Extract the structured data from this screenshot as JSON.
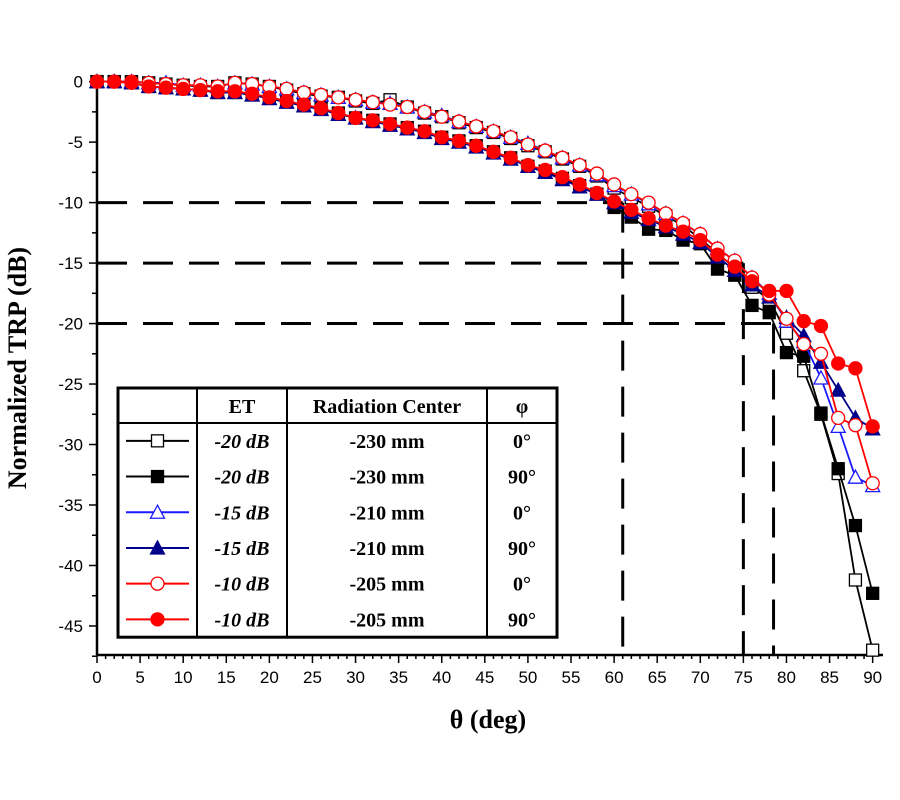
{
  "chart_data": {
    "type": "line",
    "title": "",
    "xlabel": "θ (deg)",
    "ylabel": "Normalized TRP (dB)",
    "xlim": [
      0,
      91.2
    ],
    "ylim": [
      -47.4,
      0.3
    ],
    "xticks": [
      0,
      5,
      10,
      15,
      20,
      25,
      30,
      35,
      40,
      45,
      50,
      55,
      60,
      65,
      70,
      75,
      80,
      85,
      90
    ],
    "yticks": [
      0,
      -5,
      -10,
      -15,
      -20,
      -25,
      -30,
      -35,
      -40,
      -45
    ],
    "x": [
      0,
      2,
      4,
      6,
      8,
      10,
      12,
      14,
      16,
      18,
      20,
      22,
      24,
      26,
      28,
      30,
      32,
      34,
      36,
      38,
      40,
      42,
      44,
      46,
      48,
      50,
      52,
      54,
      56,
      58,
      60,
      62,
      64,
      66,
      68,
      70,
      72,
      74,
      76,
      78,
      80,
      82,
      84,
      86,
      88,
      90
    ],
    "legend_headers": [
      "ET",
      "Radiation Center",
      "φ"
    ],
    "series": [
      {
        "name": "-20 dB, -230 mm, 0°",
        "et": "-20 dB",
        "center": "-230 mm",
        "phi": "0°",
        "color": "#000000",
        "marker": "square",
        "filled": false,
        "values": [
          0,
          0,
          0,
          -0.1,
          -0.2,
          -0.3,
          -0.4,
          -0.4,
          -0.1,
          -0.2,
          -0.4,
          -0.7,
          -1.0,
          -1.2,
          -1.3,
          -1.6,
          -1.8,
          -1.5,
          -2.1,
          -2.6,
          -2.9,
          -3.4,
          -3.8,
          -4.2,
          -4.7,
          -5.3,
          -5.8,
          -6.4,
          -7.0,
          -7.8,
          -8.8,
          -9.6,
          -10.3,
          -11.1,
          -11.9,
          -13.0,
          -14.2,
          -15.4,
          -17.0,
          -18.0,
          -20.8,
          -23.9,
          -27.5,
          -32.4,
          -41.2,
          -47.0
        ]
      },
      {
        "name": "-20 dB, -230 mm, 90°",
        "et": "-20 dB",
        "center": "-230 mm",
        "phi": "90°",
        "color": "#000000",
        "marker": "square",
        "filled": true,
        "values": [
          0,
          0,
          -0.1,
          -0.4,
          -0.5,
          -0.6,
          -0.7,
          -0.9,
          -0.9,
          -1.1,
          -1.3,
          -1.6,
          -2.0,
          -2.2,
          -2.6,
          -3.0,
          -3.2,
          -3.5,
          -3.8,
          -4.1,
          -4.6,
          -4.9,
          -5.3,
          -5.8,
          -6.3,
          -7.0,
          -7.4,
          -8.0,
          -8.6,
          -9.3,
          -10.4,
          -11.2,
          -12.2,
          -12.3,
          -13.1,
          -13.4,
          -15.5,
          -16.0,
          -18.5,
          -19.1,
          -22.4,
          -22.7,
          -27.4,
          -32.0,
          -36.7,
          -42.3
        ]
      },
      {
        "name": "-15 dB, -210 mm, 0°",
        "et": "-15 dB",
        "center": "-210 mm",
        "phi": "0°",
        "color": "#1a1aff",
        "marker": "triangle",
        "filled": false,
        "values": [
          0,
          0,
          0,
          -0.1,
          -0.1,
          -0.3,
          -0.3,
          -0.4,
          -0.1,
          -0.2,
          -0.4,
          -0.6,
          -0.9,
          -1.1,
          -1.3,
          -1.5,
          -1.7,
          -1.8,
          -2.1,
          -2.5,
          -2.8,
          -3.3,
          -3.7,
          -4.1,
          -4.6,
          -5.1,
          -5.7,
          -6.3,
          -6.9,
          -7.7,
          -8.6,
          -9.3,
          -10.1,
          -10.9,
          -11.7,
          -12.6,
          -13.8,
          -14.8,
          -16.2,
          -17.5,
          -19.8,
          -21.5,
          -24.5,
          -28.5,
          -32.7,
          -33.4
        ]
      },
      {
        "name": "-15 dB, -210 mm, 90°",
        "et": "-15 dB",
        "center": "-210 mm",
        "phi": "90°",
        "color": "#00008b",
        "marker": "triangle",
        "filled": true,
        "values": [
          0,
          0,
          -0.1,
          -0.4,
          -0.5,
          -0.6,
          -0.7,
          -0.9,
          -0.9,
          -1.1,
          -1.4,
          -1.7,
          -2.0,
          -2.3,
          -2.7,
          -3.0,
          -3.3,
          -3.6,
          -3.9,
          -4.2,
          -4.7,
          -5.0,
          -5.4,
          -5.9,
          -6.4,
          -7.0,
          -7.5,
          -8.1,
          -8.7,
          -9.3,
          -10.0,
          -10.8,
          -11.4,
          -12.0,
          -12.6,
          -13.3,
          -14.5,
          -15.6,
          -16.8,
          -17.8,
          -19.5,
          -21.0,
          -23.2,
          -25.5,
          -27.8,
          -28.7
        ]
      },
      {
        "name": "-10 dB, -205 mm, 0°",
        "et": "-10 dB",
        "center": "-205 mm",
        "phi": "0°",
        "color": "#ff0000",
        "marker": "circle",
        "filled": false,
        "values": [
          0,
          0,
          0,
          -0.1,
          -0.2,
          -0.3,
          -0.3,
          -0.4,
          -0.1,
          -0.2,
          -0.4,
          -0.6,
          -0.9,
          -1.1,
          -1.3,
          -1.5,
          -1.7,
          -1.9,
          -2.1,
          -2.5,
          -2.9,
          -3.3,
          -3.7,
          -4.1,
          -4.6,
          -5.2,
          -5.7,
          -6.3,
          -6.9,
          -7.6,
          -8.5,
          -9.3,
          -10.0,
          -10.9,
          -11.7,
          -12.6,
          -13.8,
          -14.8,
          -16.2,
          -17.6,
          -19.6,
          -21.7,
          -22.5,
          -27.8,
          -28.4,
          -33.2
        ]
      },
      {
        "name": "-10 dB, -205 mm, 90°",
        "et": "-10 dB",
        "center": "-205 mm",
        "phi": "90°",
        "color": "#ff0000",
        "marker": "circle",
        "filled": true,
        "values": [
          0,
          0,
          -0.1,
          -0.4,
          -0.5,
          -0.6,
          -0.7,
          -0.8,
          -0.8,
          -1.0,
          -1.3,
          -1.6,
          -1.9,
          -2.2,
          -2.6,
          -3.0,
          -3.2,
          -3.5,
          -3.8,
          -4.1,
          -4.6,
          -4.9,
          -5.3,
          -5.8,
          -6.3,
          -6.9,
          -7.3,
          -7.9,
          -8.5,
          -9.2,
          -9.9,
          -10.6,
          -11.3,
          -11.9,
          -12.4,
          -13.1,
          -14.3,
          -15.3,
          -16.5,
          -17.3,
          -17.3,
          -19.8,
          -20.2,
          -23.3,
          -23.7,
          -28.5
        ]
      }
    ],
    "annotations": {
      "thresholds": [
        {
          "y": -10,
          "x": 61
        },
        {
          "y": -15,
          "x": 75
        },
        {
          "y": -20,
          "x": 78.5
        }
      ]
    }
  }
}
